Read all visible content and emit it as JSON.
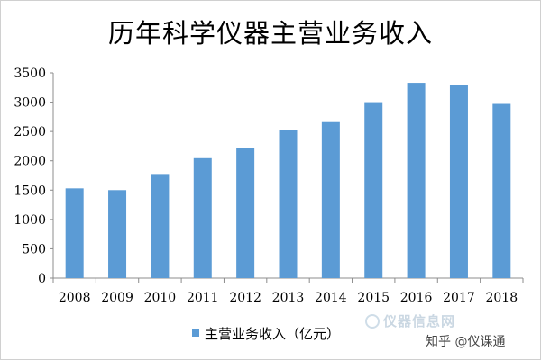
{
  "chart_data": {
    "type": "bar",
    "title": "历年科学仪器主营业务收入",
    "categories": [
      "2008",
      "2009",
      "2010",
      "2011",
      "2012",
      "2013",
      "2014",
      "2015",
      "2016",
      "2017",
      "2018"
    ],
    "series": [
      {
        "name": "主营业务收入（亿元）",
        "values": [
          1530,
          1500,
          1775,
          2045,
          2225,
          2525,
          2660,
          3000,
          3330,
          3300,
          2970
        ]
      }
    ],
    "xlabel": "",
    "ylabel": "",
    "ylim": [
      0,
      3500
    ],
    "yticks": [
      "0",
      "500",
      "1000",
      "1500",
      "2000",
      "2500",
      "3000",
      "3500"
    ],
    "ytick_values": [
      0,
      500,
      1000,
      1500,
      2000,
      2500,
      3000,
      3500
    ],
    "grid": false,
    "legend_position": "bottom",
    "bar_color": "#5b9bd5"
  },
  "watermark": {
    "text": "仪器信息网"
  },
  "attribution": "知乎 @仪课通"
}
